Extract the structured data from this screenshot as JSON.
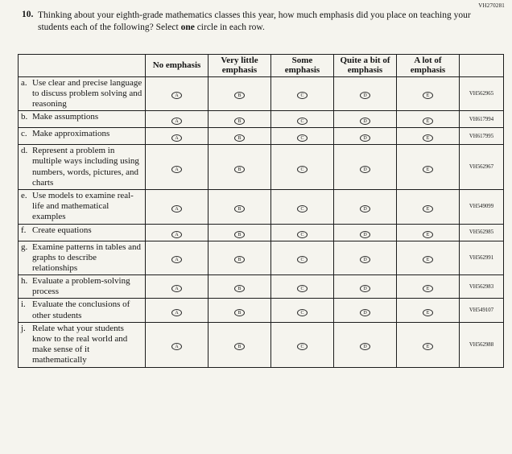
{
  "page": {
    "doc_code": "VH270281"
  },
  "question": {
    "number": "10.",
    "text_before": "Thinking about your eighth-grade mathematics classes this year, how much emphasis did you place on teaching your students each of the following? Select ",
    "text_bold": "one",
    "text_after": " circle in each row."
  },
  "table": {
    "headers": [
      "No emphasis",
      "Very little emphasis",
      "Some emphasis",
      "Quite a bit of emphasis",
      "A lot of emphasis"
    ],
    "options": [
      "A",
      "B",
      "C",
      "D",
      "E"
    ],
    "rows": [
      {
        "letter": "a.",
        "label": "Use clear and precise language to discuss problem solving and reasoning",
        "code": "VH562965"
      },
      {
        "letter": "b.",
        "label": "Make assumptions",
        "code": "VH617994"
      },
      {
        "letter": "c.",
        "label": "Make approximations",
        "code": "VH617995"
      },
      {
        "letter": "d.",
        "label": "Represent a problem in multiple ways including using numbers, words, pictures, and charts",
        "code": "VH562967"
      },
      {
        "letter": "e.",
        "label": "Use models to examine real-life and mathematical examples",
        "code": "VH549099"
      },
      {
        "letter": "f.",
        "label": "Create equations",
        "code": "VH562985"
      },
      {
        "letter": "g.",
        "label": "Examine patterns in tables and graphs to describe relationships",
        "code": "VH562991"
      },
      {
        "letter": "h.",
        "label": "Evaluate a problem-solving process",
        "code": "VH562983"
      },
      {
        "letter": "i.",
        "label": "Evaluate the conclusions of other students",
        "code": "VH549107"
      },
      {
        "letter": "j.",
        "label": "Relate what your students know to the real world and make sense of it mathematically",
        "code": "VH562988"
      }
    ]
  }
}
